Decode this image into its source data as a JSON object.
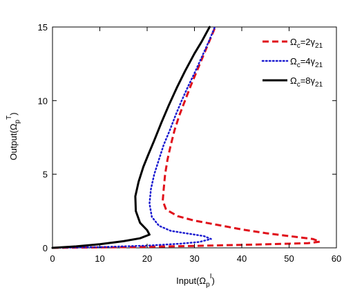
{
  "chart_data": {
    "type": "line",
    "xlabel": {
      "main": "Input(Ω",
      "sub": "p",
      "sup": "I",
      "close": ")"
    },
    "ylabel": {
      "main": "Output(Ω",
      "sub": "p",
      "sup": "T",
      "close": ")"
    },
    "xlim": [
      0,
      60
    ],
    "ylim": [
      0,
      15
    ],
    "xticks": [
      0,
      10,
      20,
      30,
      40,
      50,
      60
    ],
    "yticks": [
      0,
      5,
      10,
      15
    ],
    "grid": false,
    "legend_position": "top-right",
    "series": [
      {
        "legend": {
          "main": "Ω",
          "sub1": "c",
          "mid": "=2γ",
          "sub2": "21"
        },
        "color": "#e0101a",
        "style": "dashed",
        "points": [
          [
            0,
            0
          ],
          [
            10,
            0.03
          ],
          [
            20,
            0.07
          ],
          [
            30,
            0.13
          ],
          [
            40,
            0.2
          ],
          [
            50,
            0.28
          ],
          [
            54,
            0.32
          ],
          [
            56.5,
            0.42
          ],
          [
            55,
            0.6
          ],
          [
            50,
            0.8
          ],
          [
            45,
            1.0
          ],
          [
            40,
            1.25
          ],
          [
            35,
            1.55
          ],
          [
            30,
            1.85
          ],
          [
            26.5,
            2.15
          ],
          [
            24,
            2.6
          ],
          [
            23.3,
            3.2
          ],
          [
            23.5,
            4
          ],
          [
            23.8,
            5
          ],
          [
            24.3,
            6
          ],
          [
            25,
            7
          ],
          [
            25.8,
            8
          ],
          [
            26.8,
            9
          ],
          [
            28,
            10
          ],
          [
            29.2,
            11
          ],
          [
            30.5,
            12
          ],
          [
            31.8,
            13
          ],
          [
            33.1,
            14
          ],
          [
            34.4,
            15
          ]
        ]
      },
      {
        "legend": {
          "main": "Ω",
          "sub1": "c",
          "mid": "=4γ",
          "sub2": "21"
        },
        "color": "#1a1ad0",
        "style": "dotted",
        "points": [
          [
            0,
            0
          ],
          [
            10,
            0.05
          ],
          [
            20,
            0.15
          ],
          [
            27,
            0.28
          ],
          [
            31,
            0.4
          ],
          [
            33.5,
            0.6
          ],
          [
            32,
            0.8
          ],
          [
            29,
            0.95
          ],
          [
            25,
            1.15
          ],
          [
            22.5,
            1.5
          ],
          [
            21,
            2.1
          ],
          [
            20.5,
            3
          ],
          [
            20.8,
            4
          ],
          [
            21.5,
            5
          ],
          [
            22.5,
            6
          ],
          [
            23.5,
            7
          ],
          [
            24.8,
            8
          ],
          [
            26,
            9
          ],
          [
            27.3,
            10
          ],
          [
            28.7,
            11
          ],
          [
            30.2,
            12
          ],
          [
            31.6,
            13
          ],
          [
            33,
            14
          ],
          [
            34.3,
            15
          ]
        ]
      },
      {
        "legend": {
          "main": "Ω",
          "sub1": "c",
          "mid": "=8γ",
          "sub2": "21"
        },
        "color": "#000000",
        "style": "solid",
        "points": [
          [
            0,
            0
          ],
          [
            5,
            0.1
          ],
          [
            10,
            0.25
          ],
          [
            15,
            0.45
          ],
          [
            18.5,
            0.65
          ],
          [
            20.5,
            0.9
          ],
          [
            20,
            1.2
          ],
          [
            18.5,
            1.7
          ],
          [
            17.6,
            2.5
          ],
          [
            17.5,
            3.5
          ],
          [
            18.2,
            4.5
          ],
          [
            19.2,
            5.5
          ],
          [
            20.2,
            6.3
          ],
          [
            21.5,
            7.3
          ],
          [
            23,
            8.5
          ],
          [
            24.6,
            9.7
          ],
          [
            26.3,
            10.9
          ],
          [
            28,
            12
          ],
          [
            30,
            13.2
          ],
          [
            31.5,
            14
          ],
          [
            33.2,
            15
          ]
        ]
      }
    ]
  }
}
